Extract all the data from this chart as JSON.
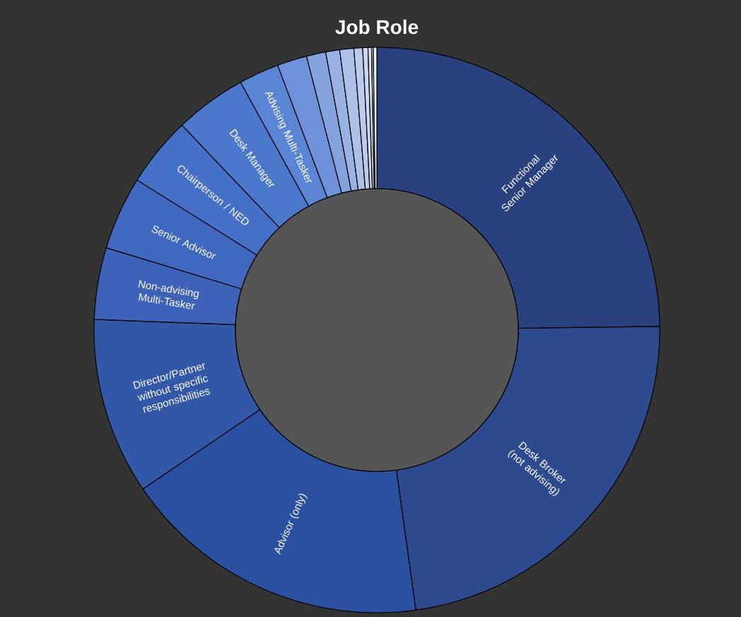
{
  "chart_data": {
    "type": "donut",
    "title": "Job Role",
    "categories": [
      "Functional Senior Manager",
      "Desk Broker (not advising)",
      "Advisor (only)",
      "Director/Partner without specific responsibilities",
      "Non-advising Multi-Tasker",
      "Senior Advisor",
      "Chairperson / NED",
      "Desk Manager",
      "Advising Multi-Tasker",
      null,
      null,
      null,
      null,
      null,
      null,
      null,
      null,
      null
    ],
    "values": [
      24.8,
      23.0,
      17.7,
      10.1,
      4.1,
      4.2,
      4.0,
      4.1,
      2.3,
      1.7,
      1.1,
      0.8,
      0.8,
      0.5,
      0.3,
      0.2,
      0.1,
      0.2
    ],
    "colors": [
      "#2a4180",
      "#2e4a8e",
      "#2c50a0",
      "#3458a8",
      "#3d62b8",
      "#4068c0",
      "#4470c8",
      "#4c78cc",
      "#5a84d4",
      "#6e92da",
      "#84a2de",
      "#98b2e4",
      "#acc0e8",
      "#bccbec",
      "#ccd6f0",
      "#d8e0f4",
      "#e4eaf6",
      "#eef2fa"
    ]
  }
}
